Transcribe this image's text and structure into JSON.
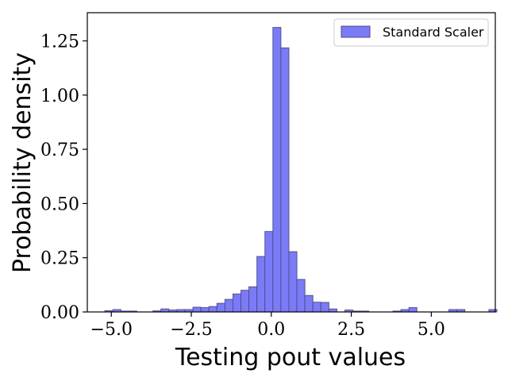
{
  "chart_data": {
    "type": "bar",
    "subtype": "histogram",
    "xlabel": "Testing pout values",
    "ylabel": "Probability density",
    "xlim": [
      -5.75,
      7.0
    ],
    "ylim": [
      0,
      1.38
    ],
    "xticks": [
      -5.0,
      -2.5,
      0.0,
      2.5,
      5.0
    ],
    "xtick_labels": [
      "−5.0",
      "−2.5",
      "0.0",
      "2.5",
      "5.0"
    ],
    "yticks": [
      0.0,
      0.25,
      0.5,
      0.75,
      1.0,
      1.25
    ],
    "ytick_labels": [
      "0.00",
      "0.25",
      "0.50",
      "0.75",
      "1.00",
      "1.25"
    ],
    "grid": false,
    "legend": {
      "position": "top-right",
      "entries": [
        "Standard Scaler"
      ]
    },
    "series": [
      {
        "name": "Standard Scaler",
        "color": "#7b7bf7",
        "edgecolor": "#4a4a8a",
        "bins": [
          {
            "x0": -5.2,
            "x1": -4.95,
            "value": 0.006
          },
          {
            "x0": -4.95,
            "x1": -4.7,
            "value": 0.011
          },
          {
            "x0": -4.7,
            "x1": -4.45,
            "value": 0.004
          },
          {
            "x0": -4.45,
            "x1": -4.2,
            "value": 0.004
          },
          {
            "x0": -3.7,
            "x1": -3.45,
            "value": 0.005
          },
          {
            "x0": -3.45,
            "x1": -3.2,
            "value": 0.014
          },
          {
            "x0": -3.2,
            "x1": -2.95,
            "value": 0.009
          },
          {
            "x0": -2.95,
            "x1": -2.7,
            "value": 0.011
          },
          {
            "x0": -2.7,
            "x1": -2.45,
            "value": 0.011
          },
          {
            "x0": -2.45,
            "x1": -2.2,
            "value": 0.022
          },
          {
            "x0": -2.2,
            "x1": -1.95,
            "value": 0.02
          },
          {
            "x0": -1.95,
            "x1": -1.7,
            "value": 0.025
          },
          {
            "x0": -1.7,
            "x1": -1.45,
            "value": 0.04
          },
          {
            "x0": -1.45,
            "x1": -1.2,
            "value": 0.058
          },
          {
            "x0": -1.2,
            "x1": -0.95,
            "value": 0.083
          },
          {
            "x0": -0.95,
            "x1": -0.7,
            "value": 0.1
          },
          {
            "x0": -0.7,
            "x1": -0.45,
            "value": 0.116
          },
          {
            "x0": -0.45,
            "x1": -0.2,
            "value": 0.256
          },
          {
            "x0": -0.2,
            "x1": 0.05,
            "value": 0.371
          },
          {
            "x0": 0.05,
            "x1": 0.3,
            "value": 1.312
          },
          {
            "x0": 0.3,
            "x1": 0.55,
            "value": 1.218
          },
          {
            "x0": 0.55,
            "x1": 0.8,
            "value": 0.278
          },
          {
            "x0": 0.8,
            "x1": 1.05,
            "value": 0.15
          },
          {
            "x0": 1.05,
            "x1": 1.3,
            "value": 0.076
          },
          {
            "x0": 1.3,
            "x1": 1.55,
            "value": 0.045
          },
          {
            "x0": 1.55,
            "x1": 1.8,
            "value": 0.044
          },
          {
            "x0": 1.8,
            "x1": 2.05,
            "value": 0.014
          },
          {
            "x0": 2.3,
            "x1": 2.55,
            "value": 0.009
          },
          {
            "x0": 2.55,
            "x1": 2.8,
            "value": 0.004
          },
          {
            "x0": 2.8,
            "x1": 3.05,
            "value": 0.004
          },
          {
            "x0": 3.8,
            "x1": 4.05,
            "value": 0.004
          },
          {
            "x0": 4.05,
            "x1": 4.3,
            "value": 0.011
          },
          {
            "x0": 4.3,
            "x1": 4.55,
            "value": 0.02
          },
          {
            "x0": 5.55,
            "x1": 5.8,
            "value": 0.011
          },
          {
            "x0": 5.8,
            "x1": 6.05,
            "value": 0.011
          },
          {
            "x0": 6.8,
            "x1": 7.05,
            "value": 0.011
          }
        ]
      }
    ]
  }
}
